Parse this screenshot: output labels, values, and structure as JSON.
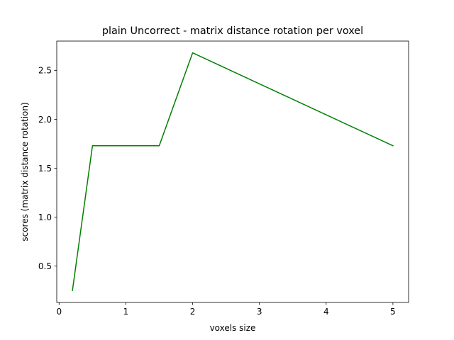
{
  "chart_data": {
    "type": "line",
    "title": "plain Uncorrect - matrix distance rotation per voxel",
    "xlabel": "voxels size",
    "ylabel": "scores (matrix distance rotation)",
    "xlim": [
      -0.035,
      5.235
    ],
    "ylim": [
      0.128,
      2.8
    ],
    "x_ticks": [
      0,
      1,
      2,
      3,
      4,
      5
    ],
    "y_ticks": [
      0.5,
      1.0,
      1.5,
      2.0,
      2.5
    ],
    "x_tick_labels": [
      "0",
      "1",
      "2",
      "3",
      "4",
      "5"
    ],
    "y_tick_labels": [
      "0.5",
      "1.0",
      "1.5",
      "2.0",
      "2.5"
    ],
    "grid": false,
    "series": [
      {
        "color": "#008000",
        "x": [
          0.2,
          0.5,
          1.0,
          1.5,
          2.0,
          5.0
        ],
        "y": [
          0.25,
          1.73,
          1.73,
          1.73,
          2.68,
          1.73
        ]
      }
    ]
  }
}
